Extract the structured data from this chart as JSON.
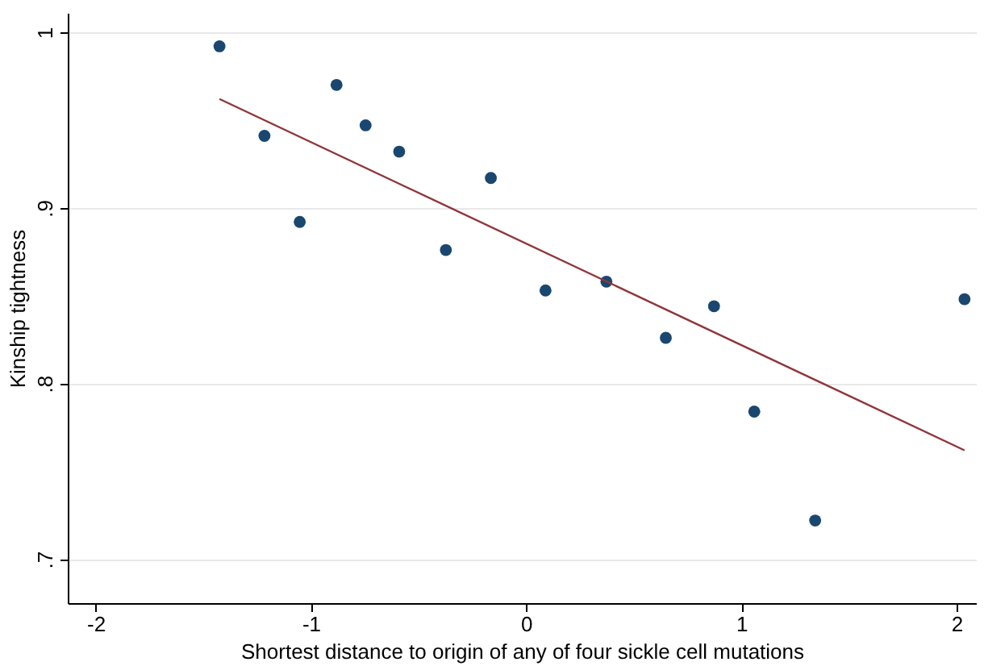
{
  "chart_data": {
    "type": "scatter",
    "xlabel": "Shortest distance to origin of any of four sickle cell mutations",
    "ylabel": "Kinship tightness",
    "xlim": [
      -2.13,
      2.09
    ],
    "ylim": [
      0.675,
      1.011
    ],
    "xticks": [
      -2,
      -1,
      0,
      1,
      2
    ],
    "yticks": [
      {
        "value": 0.7,
        "label": ".7"
      },
      {
        "value": 0.8,
        "label": ".8"
      },
      {
        "value": 0.9,
        "label": ".9"
      },
      1
    ],
    "grid": "y",
    "marker": "circle",
    "series": [
      {
        "type": "scatter",
        "color": "#1a476f",
        "x": [
          -1.425,
          -1.216,
          -1.052,
          -0.881,
          -0.746,
          -0.59,
          -0.373,
          -0.164,
          0.09,
          0.373,
          0.649,
          0.873,
          1.06,
          1.343,
          2.037
        ],
        "values": [
          0.992,
          0.941,
          0.892,
          0.97,
          0.947,
          0.932,
          0.876,
          0.917,
          0.853,
          0.858,
          0.826,
          0.844,
          0.784,
          0.722,
          0.848
        ]
      },
      {
        "type": "line",
        "marker": "none",
        "line_style": "solid",
        "color": "#90353b",
        "x": [
          -1.425,
          2.037
        ],
        "values": [
          0.962,
          0.762
        ]
      }
    ]
  }
}
